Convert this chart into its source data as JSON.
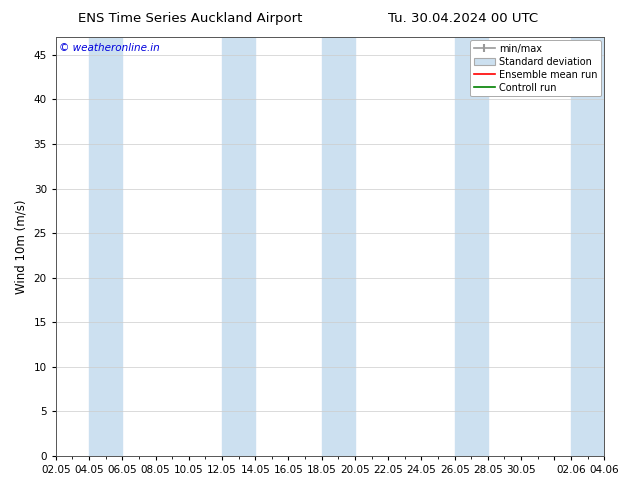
{
  "title_left": "ENS Time Series Auckland Airport",
  "title_right": "Tu. 30.04.2024 00 UTC",
  "ylabel": "Wind 10m (m/s)",
  "watermark": "© weatheronline.in",
  "watermark_color": "#0000dd",
  "ylim": [
    0,
    47
  ],
  "yticks": [
    0,
    5,
    10,
    15,
    20,
    25,
    30,
    35,
    40,
    45
  ],
  "x_tick_labels": [
    "02.05",
    "04.05",
    "06.05",
    "08.05",
    "10.05",
    "12.05",
    "14.05",
    "16.05",
    "18.05",
    "20.05",
    "22.05",
    "24.05",
    "26.05",
    "28.05",
    "30.05",
    "",
    "02.06",
    "04.06"
  ],
  "x_positions": [
    0,
    2,
    4,
    6,
    8,
    10,
    12,
    14,
    16,
    18,
    20,
    22,
    24,
    26,
    28,
    30,
    31,
    33
  ],
  "x_lim": [
    0,
    33
  ],
  "background_color": "#ffffff",
  "plot_bg_color": "#ffffff",
  "shaded_band_color": "#cce0f0",
  "shaded_bands": [
    [
      2,
      4
    ],
    [
      10,
      12
    ],
    [
      16,
      18
    ],
    [
      24,
      26
    ],
    [
      31,
      33
    ]
  ],
  "legend_entries": [
    "min/max",
    "Standard deviation",
    "Ensemble mean run",
    "Controll run"
  ],
  "legend_colors_line": [
    "#999999",
    "#aac4dc",
    "#ff0000",
    "#008000"
  ],
  "title_fontsize": 9.5,
  "ylabel_fontsize": 8.5,
  "tick_fontsize": 7.5,
  "watermark_fontsize": 7.5,
  "legend_fontsize": 7
}
